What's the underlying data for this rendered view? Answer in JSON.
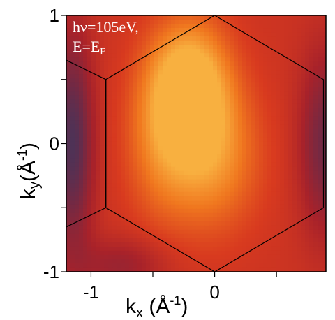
{
  "chart_data": {
    "type": "heatmap",
    "title": "",
    "annotation": {
      "line1": "hν=105eV,",
      "line2_prefix": "E=E",
      "line2_sub": "F"
    },
    "xlabel": {
      "main": "k",
      "sub": "x",
      "unit_open": " (Å",
      "unit_exp": "-1",
      "unit_close": ")"
    },
    "ylabel": {
      "main": "k",
      "sub": "y",
      "unit_open": "(Å",
      "unit_exp": "-1",
      "unit_close": ")"
    },
    "xlim": [
      -1.2,
      0.9
    ],
    "ylim": [
      -1.0,
      1.0
    ],
    "x_tick_labels": [
      {
        "value": -1,
        "label": "-1"
      },
      {
        "value": 0,
        "label": "0"
      }
    ],
    "x_minor_ticks": [
      -1,
      -0.5,
      0,
      0.5
    ],
    "y_tick_labels": [
      {
        "value": 1,
        "label": "1"
      },
      {
        "value": 0,
        "label": "0"
      },
      {
        "value": -1,
        "label": "-1"
      }
    ],
    "y_minor_ticks": [
      1,
      0.5,
      0,
      -0.5,
      -1
    ],
    "grid": false,
    "colormap": [
      "#2f3a66",
      "#6e2a46",
      "#a8222a",
      "#d83a1f",
      "#f0781f",
      "#f8b040"
    ],
    "intensity_blobs": [
      {
        "x": -0.2,
        "y": 0.45,
        "amp": 0.55,
        "sx": 0.22,
        "sy": 0.35
      },
      {
        "x": -0.05,
        "y": -0.1,
        "amp": 0.35,
        "sx": 0.28,
        "sy": 0.4
      },
      {
        "x": -0.45,
        "y": 0.05,
        "amp": 0.2,
        "sx": 0.2,
        "sy": 0.45
      }
    ],
    "background_intensity": 0.55,
    "edge_dips": [
      {
        "x": -1.15,
        "y": 0.0,
        "amp": -0.45,
        "sx": 0.12,
        "sy": 0.6
      },
      {
        "x": 0.9,
        "y": 0.0,
        "amp": -0.35,
        "sx": 0.15,
        "sy": 0.5
      },
      {
        "x": -0.75,
        "y": -0.95,
        "amp": -0.2,
        "sx": 0.25,
        "sy": 0.15
      }
    ],
    "brillouin_zones": [
      {
        "vertices": [
          [
            -0.88,
            0.5
          ],
          [
            0.0,
            1.0
          ],
          [
            0.88,
            0.5
          ],
          [
            0.88,
            -0.5
          ],
          [
            0.0,
            -1.0
          ],
          [
            -0.88,
            -0.5
          ]
        ]
      },
      {
        "vertices": [
          [
            -0.88,
            0.5
          ],
          [
            -0.88,
            -0.5
          ],
          [
            -1.2,
            -0.65
          ]
        ]
      },
      {
        "vertices": [
          [
            -0.88,
            0.5
          ],
          [
            -1.2,
            0.65
          ]
        ]
      }
    ]
  }
}
